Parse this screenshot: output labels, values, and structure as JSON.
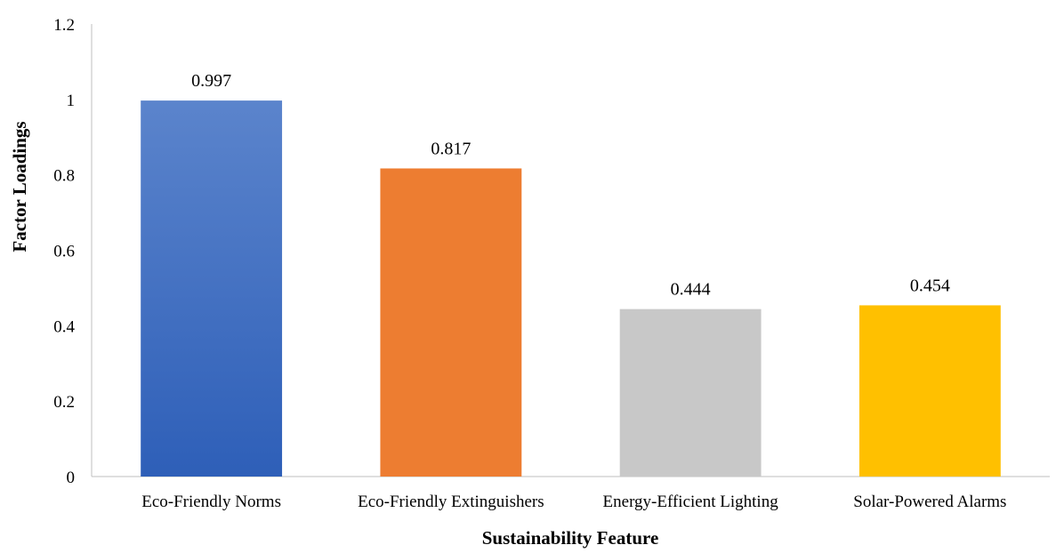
{
  "chart_data": {
    "type": "bar",
    "categories": [
      "Eco-Friendly Norms",
      "Eco-Friendly Extinguishers",
      "Energy-Efficient Lighting",
      "Solar-Powered Alarms"
    ],
    "values": [
      0.997,
      0.817,
      0.444,
      0.454
    ],
    "data_labels": [
      "0.997",
      "0.817",
      "0.444",
      "0.454"
    ],
    "colors": [
      "#4472c4",
      "#ed7d31",
      "#c8c8c8",
      "#ffc000"
    ],
    "xlabel": "Sustainability Feature",
    "ylabel": "Factor Loadings",
    "ylim": [
      0,
      1.2
    ],
    "yticks": [
      "0",
      "0.2",
      "0.4",
      "0.6",
      "0.8",
      "1",
      "1.2"
    ],
    "ytick_values": [
      0,
      0.2,
      0.4,
      0.6,
      0.8,
      1,
      1.2
    ],
    "grid": false,
    "legend": "none"
  }
}
